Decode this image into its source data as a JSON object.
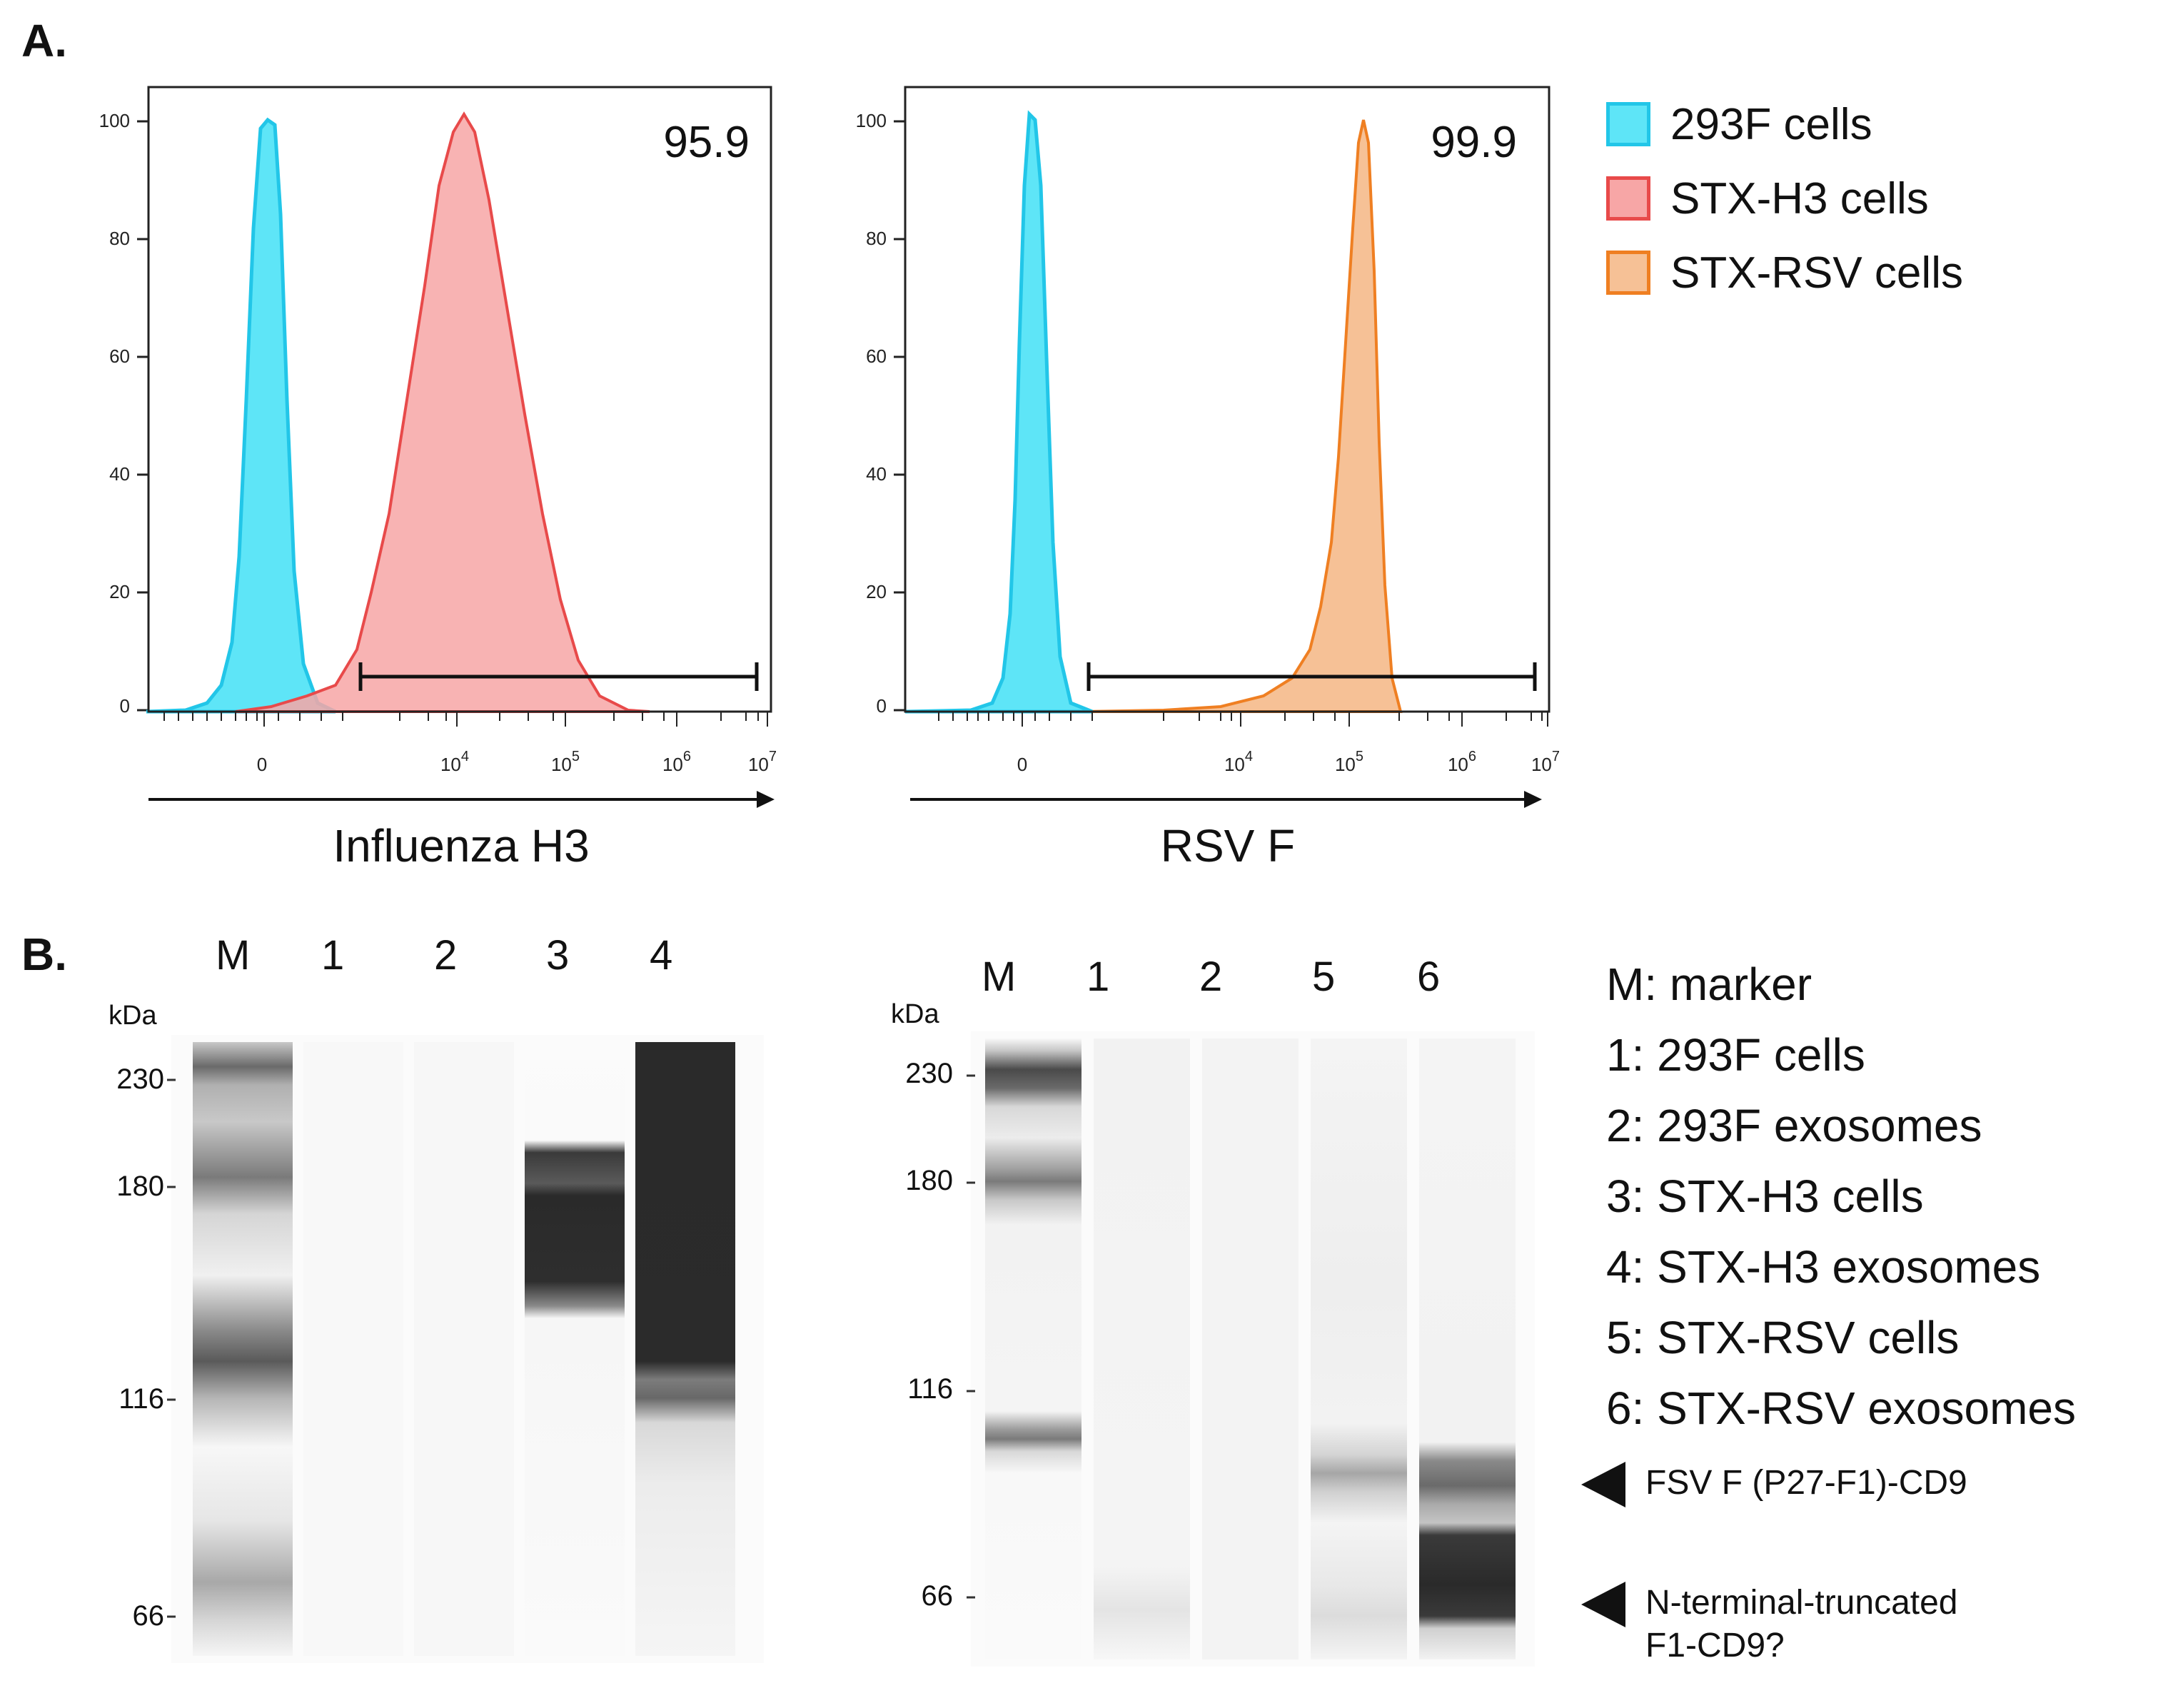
{
  "panelA": {
    "label": "A.",
    "legend": [
      {
        "name": "293F cells",
        "fill": "#5ee5f7",
        "stroke": "#22c6e8"
      },
      {
        "name": "STX-H3 cells",
        "fill": "#f7a6a6",
        "stroke": "#e84a4a"
      },
      {
        "name": "STX-RSV cells",
        "fill": "#f6c196",
        "stroke": "#ef7f22"
      }
    ],
    "plots": [
      {
        "axis_title": "Influenza H3",
        "gate_percent": "95.9",
        "y_ticks": [
          "100",
          "80",
          "60",
          "40",
          "20",
          "0"
        ],
        "x_ticks": [
          {
            "base": "0",
            "exp": ""
          },
          {
            "base": "10",
            "exp": "4"
          },
          {
            "base": "10",
            "exp": "5"
          },
          {
            "base": "10",
            "exp": "6"
          },
          {
            "base": "10",
            "exp": "7"
          }
        ]
      },
      {
        "axis_title": "RSV F",
        "gate_percent": "99.9",
        "y_ticks": [
          "100",
          "80",
          "60",
          "40",
          "20",
          "0"
        ],
        "x_ticks": [
          {
            "base": "0",
            "exp": ""
          },
          {
            "base": "10",
            "exp": "4"
          },
          {
            "base": "10",
            "exp": "5"
          },
          {
            "base": "10",
            "exp": "6"
          },
          {
            "base": "10",
            "exp": "7"
          }
        ]
      }
    ]
  },
  "panelB": {
    "label": "B.",
    "left_blot": {
      "lanes": [
        "M",
        "1",
        "2",
        "3",
        "4"
      ],
      "unit": "kDa",
      "mw": [
        "230",
        "180",
        "116",
        "66"
      ]
    },
    "right_blot": {
      "lanes": [
        "M",
        "1",
        "2",
        "5",
        "6"
      ],
      "unit": "kDa",
      "mw": [
        "230",
        "180",
        "116",
        "66"
      ]
    },
    "key": [
      "M: marker",
      "1: 293F cells",
      "2: 293F exosomes",
      "3: STX-H3 cells",
      "4: STX-H3 exosomes",
      "5: STX-RSV cells",
      "6: STX-RSV exosomes"
    ],
    "annotations": [
      {
        "line1": "FSV F (P27-F1)-CD9",
        "line2": ""
      },
      {
        "line1": "N-terminal-truncated",
        "line2": "F1-CD9?"
      }
    ]
  }
}
